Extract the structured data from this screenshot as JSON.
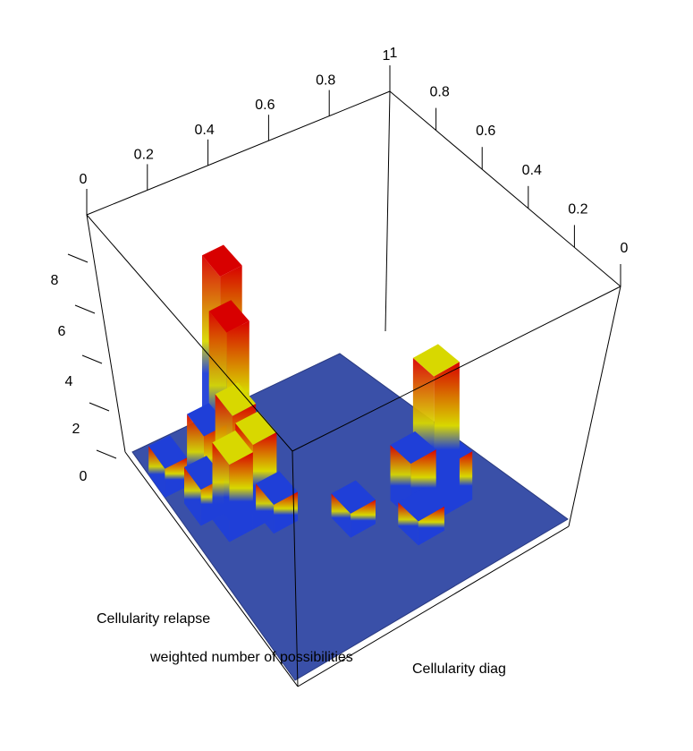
{
  "chart_data": {
    "type": "3d-bar",
    "xlabel": "Cellularity diag",
    "ylabel": "Cellularity relapse",
    "zlabel": "weighted number of possibilities",
    "x_ticks": [
      "0",
      "0.2",
      "0.4",
      "0.6",
      "0.8",
      "1"
    ],
    "y_ticks": [
      "0",
      "0.2",
      "0.4",
      "0.6",
      "0.8",
      "1"
    ],
    "z_ticks": [
      "0",
      "2",
      "4",
      "6",
      "8"
    ],
    "xlim": [
      0,
      1
    ],
    "ylim": [
      0,
      1
    ],
    "zlim": [
      0,
      10
    ],
    "colors": {
      "low": "#1f3fd8",
      "mid": "#d8d800",
      "high": "#d80000",
      "floor": "#3a50a8"
    },
    "bars": [
      {
        "x": 0.15,
        "y": 0.7,
        "z": 8.0
      },
      {
        "x": 0.25,
        "y": 0.75,
        "z": 6.8
      },
      {
        "x": 0.3,
        "y": 0.75,
        "z": 2.2
      },
      {
        "x": 0.25,
        "y": 0.85,
        "z": 3.0
      },
      {
        "x": 0.35,
        "y": 0.8,
        "z": 4.5
      },
      {
        "x": 0.4,
        "y": 0.75,
        "z": 3.5
      },
      {
        "x": 0.4,
        "y": 0.85,
        "z": 3.2
      },
      {
        "x": 0.3,
        "y": 0.9,
        "z": 1.5
      },
      {
        "x": 0.15,
        "y": 0.95,
        "z": 1.2
      },
      {
        "x": 0.45,
        "y": 0.7,
        "z": 1.2
      },
      {
        "x": 0.7,
        "y": 0.25,
        "z": 6.0
      },
      {
        "x": 0.7,
        "y": 0.2,
        "z": 2.0
      },
      {
        "x": 0.65,
        "y": 0.3,
        "z": 2.3
      },
      {
        "x": 0.75,
        "y": 0.35,
        "z": 1.0
      },
      {
        "x": 0.6,
        "y": 0.5,
        "z": 1.0
      }
    ]
  }
}
